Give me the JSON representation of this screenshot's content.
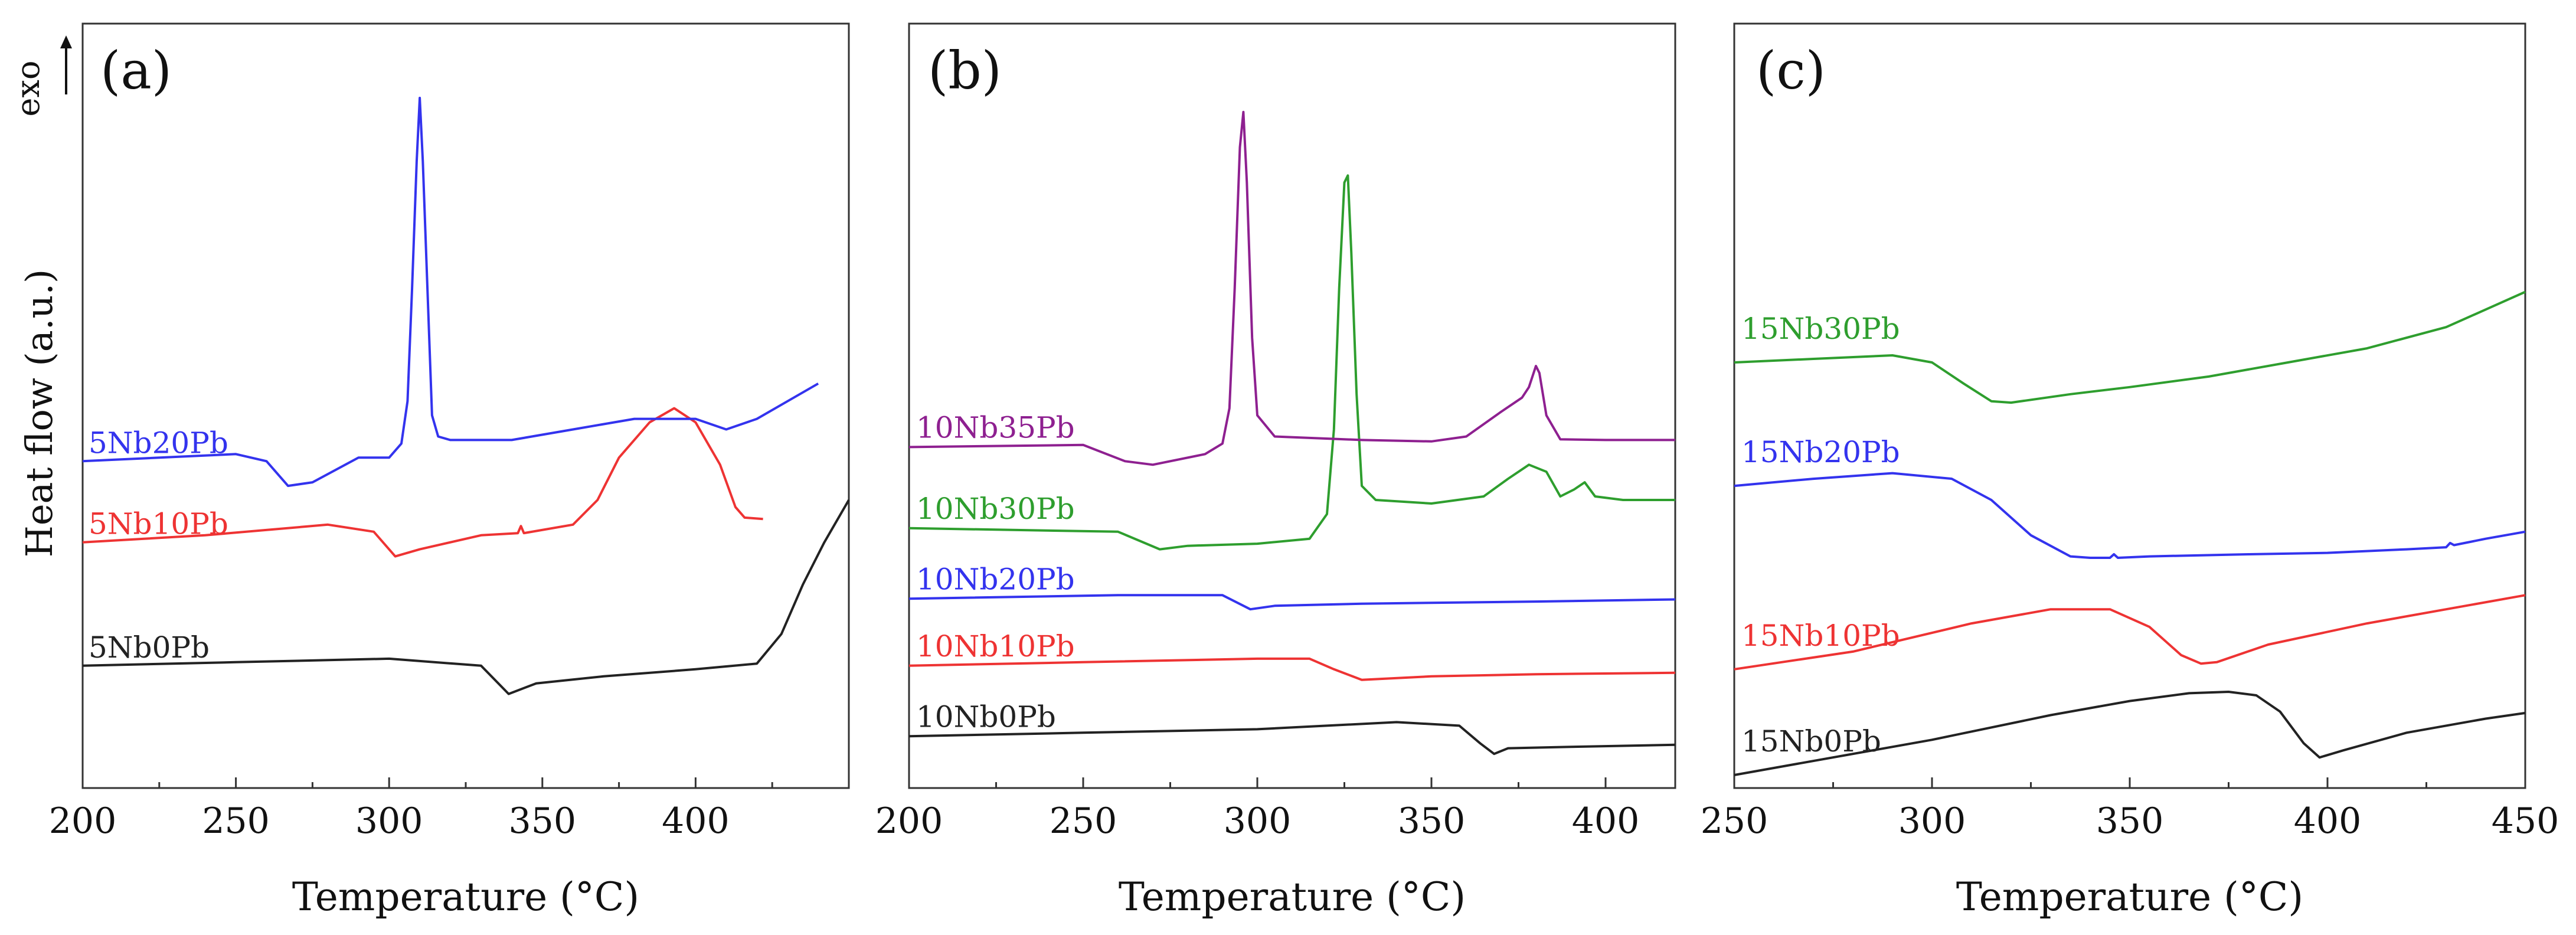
{
  "figure": {
    "y_axis_label": "Heat flow (a.u.)",
    "exo_label": "exo"
  },
  "chart_data": [
    {
      "type": "line",
      "panel_label": "(a)",
      "xlabel": "Temperature (°C)",
      "ylabel": "Heat flow (a.u.)",
      "xlim": [
        200,
        450
      ],
      "x_ticks": [
        "200",
        "250",
        "300",
        "350",
        "400"
      ],
      "ylim": [
        0,
        100
      ],
      "series": [
        {
          "name": "5Nb0Pb",
          "color": "#222222",
          "points": [
            [
              200,
              16.5
            ],
            [
              250,
              17.0
            ],
            [
              300,
              17.5
            ],
            [
              330,
              16.5
            ],
            [
              339,
              12.5
            ],
            [
              348,
              14.0
            ],
            [
              370,
              15.0
            ],
            [
              400,
              16.0
            ],
            [
              420,
              16.8
            ],
            [
              428,
              21
            ],
            [
              435,
              28
            ],
            [
              442,
              34
            ],
            [
              450,
              40
            ]
          ]
        },
        {
          "name": "5Nb10Pb",
          "color": "#ee3333",
          "points": [
            [
              200,
              34.0
            ],
            [
              240,
              35.0
            ],
            [
              280,
              36.5
            ],
            [
              295,
              35.5
            ],
            [
              302,
              32.0
            ],
            [
              310,
              33.0
            ],
            [
              330,
              35.0
            ],
            [
              342,
              35.3
            ],
            [
              343,
              36.3
            ],
            [
              344,
              35.3
            ],
            [
              360,
              36.5
            ],
            [
              368,
              40
            ],
            [
              375,
              46
            ],
            [
              385,
              51
            ],
            [
              393,
              53
            ],
            [
              400,
              51
            ],
            [
              408,
              45
            ],
            [
              413,
              39
            ],
            [
              416,
              37.5
            ],
            [
              422,
              37.3
            ]
          ]
        },
        {
          "name": "5Nb20Pb",
          "color": "#3333ee",
          "points": [
            [
              200,
              45.5
            ],
            [
              250,
              46.5
            ],
            [
              260,
              45.5
            ],
            [
              267,
              42.0
            ],
            [
              275,
              42.5
            ],
            [
              290,
              46.0
            ],
            [
              300,
              46.0
            ],
            [
              304,
              48
            ],
            [
              306,
              54
            ],
            [
              307.5,
              70
            ],
            [
              309,
              88
            ],
            [
              310,
              97
            ],
            [
              311,
              88
            ],
            [
              312.5,
              70
            ],
            [
              314,
              52
            ],
            [
              316,
              49
            ],
            [
              320,
              48.5
            ],
            [
              340,
              48.5
            ],
            [
              360,
              50
            ],
            [
              380,
              51.5
            ],
            [
              400,
              51.5
            ],
            [
              410,
              50.0
            ],
            [
              420,
              51.5
            ],
            [
              430,
              54.0
            ],
            [
              440,
              56.5
            ]
          ]
        }
      ]
    },
    {
      "type": "line",
      "panel_label": "(b)",
      "xlabel": "Temperature (°C)",
      "ylabel": "Heat flow (a.u.)",
      "xlim": [
        200,
        420
      ],
      "x_ticks": [
        "200",
        "250",
        "300",
        "350",
        "400"
      ],
      "ylim": [
        0,
        100
      ],
      "series": [
        {
          "name": "10Nb0Pb",
          "color": "#222222",
          "points": [
            [
              200,
              6.5
            ],
            [
              250,
              7.0
            ],
            [
              300,
              7.5
            ],
            [
              340,
              8.5
            ],
            [
              358,
              8.0
            ],
            [
              364,
              5.5
            ],
            [
              368,
              4.0
            ],
            [
              372,
              4.8
            ],
            [
              390,
              5.0
            ],
            [
              420,
              5.3
            ]
          ]
        },
        {
          "name": "10Nb10Pb",
          "color": "#ee3333",
          "points": [
            [
              200,
              16.5
            ],
            [
              250,
              17.0
            ],
            [
              300,
              17.5
            ],
            [
              315,
              17.5
            ],
            [
              322,
              16.0
            ],
            [
              330,
              14.5
            ],
            [
              350,
              15.0
            ],
            [
              380,
              15.3
            ],
            [
              420,
              15.5
            ]
          ]
        },
        {
          "name": "10Nb20Pb",
          "color": "#3333ee",
          "points": [
            [
              200,
              26.0
            ],
            [
              260,
              26.5
            ],
            [
              290,
              26.5
            ],
            [
              298,
              24.5
            ],
            [
              305,
              25.0
            ],
            [
              330,
              25.3
            ],
            [
              380,
              25.6
            ],
            [
              420,
              25.9
            ]
          ]
        },
        {
          "name": "10Nb30Pb",
          "color": "#2e9e2e",
          "points": [
            [
              200,
              36.0
            ],
            [
              260,
              35.5
            ],
            [
              272,
              33.0
            ],
            [
              280,
              33.5
            ],
            [
              300,
              33.8
            ],
            [
              315,
              34.5
            ],
            [
              320,
              38
            ],
            [
              322,
              50
            ],
            [
              323.5,
              70
            ],
            [
              325,
              85
            ],
            [
              326,
              86
            ],
            [
              327,
              75
            ],
            [
              328.5,
              55
            ],
            [
              330,
              42
            ],
            [
              334,
              40
            ],
            [
              350,
              39.5
            ],
            [
              365,
              40.5
            ],
            [
              372,
              43
            ],
            [
              378,
              45
            ],
            [
              383,
              44
            ],
            [
              387,
              40.5
            ],
            [
              391,
              41.5
            ],
            [
              394,
              42.5
            ],
            [
              397,
              40.5
            ],
            [
              405,
              40.0
            ],
            [
              420,
              40.0
            ]
          ]
        },
        {
          "name": "10Nb35Pb",
          "color": "#8e2090",
          "points": [
            [
              200,
              47.5
            ],
            [
              250,
              47.8
            ],
            [
              262,
              45.5
            ],
            [
              270,
              45.0
            ],
            [
              285,
              46.5
            ],
            [
              290,
              48.0
            ],
            [
              292,
              53
            ],
            [
              293.5,
              70
            ],
            [
              295,
              90
            ],
            [
              296,
              95
            ],
            [
              297,
              85
            ],
            [
              298.5,
              63
            ],
            [
              300,
              52
            ],
            [
              305,
              49.0
            ],
            [
              330,
              48.5
            ],
            [
              350,
              48.3
            ],
            [
              360,
              49.0
            ],
            [
              370,
              52.5
            ],
            [
              376,
              54.5
            ],
            [
              378,
              56
            ],
            [
              380,
              59
            ],
            [
              381,
              58
            ],
            [
              383,
              52
            ],
            [
              387,
              48.6
            ],
            [
              400,
              48.5
            ],
            [
              420,
              48.5
            ]
          ]
        }
      ]
    },
    {
      "type": "line",
      "panel_label": "(c)",
      "xlabel": "Temperature (°C)",
      "ylabel": "Heat flow (a.u.)",
      "xlim": [
        250,
        450
      ],
      "x_ticks": [
        "250",
        "300",
        "350",
        "400",
        "450"
      ],
      "ylim": [
        0,
        100
      ],
      "series": [
        {
          "name": "15Nb0Pb",
          "color": "#222222",
          "points": [
            [
              250,
              1.0
            ],
            [
              300,
              6.0
            ],
            [
              330,
              9.5
            ],
            [
              350,
              11.5
            ],
            [
              365,
              12.6
            ],
            [
              375,
              12.8
            ],
            [
              382,
              12.3
            ],
            [
              388,
              10
            ],
            [
              394,
              5.5
            ],
            [
              398,
              3.5
            ],
            [
              404,
              4.5
            ],
            [
              420,
              7.0
            ],
            [
              440,
              9.0
            ],
            [
              450,
              9.8
            ]
          ]
        },
        {
          "name": "15Nb10Pb",
          "color": "#ee3333",
          "points": [
            [
              250,
              16.0
            ],
            [
              280,
              18.5
            ],
            [
              310,
              22.5
            ],
            [
              330,
              24.5
            ],
            [
              345,
              24.5
            ],
            [
              355,
              22
            ],
            [
              363,
              18
            ],
            [
              368,
              16.8
            ],
            [
              372,
              17.0
            ],
            [
              385,
              19.5
            ],
            [
              410,
              22.5
            ],
            [
              430,
              24.5
            ],
            [
              450,
              26.5
            ]
          ]
        },
        {
          "name": "15Nb20Pb",
          "color": "#3333ee",
          "points": [
            [
              250,
              42.0
            ],
            [
              270,
              43.0
            ],
            [
              290,
              43.8
            ],
            [
              305,
              43.0
            ],
            [
              315,
              40
            ],
            [
              325,
              35
            ],
            [
              335,
              32.0
            ],
            [
              340,
              31.8
            ],
            [
              345,
              31.8
            ],
            [
              346,
              32.3
            ],
            [
              347,
              31.8
            ],
            [
              355,
              32.0
            ],
            [
              380,
              32.3
            ],
            [
              400,
              32.5
            ],
            [
              420,
              33.0
            ],
            [
              430,
              33.3
            ],
            [
              431,
              33.9
            ],
            [
              432,
              33.6
            ],
            [
              440,
              34.5
            ],
            [
              450,
              35.5
            ]
          ]
        },
        {
          "name": "15Nb30Pb",
          "color": "#2e9e2e",
          "points": [
            [
              250,
              59.5
            ],
            [
              270,
              60.0
            ],
            [
              290,
              60.5
            ],
            [
              300,
              59.5
            ],
            [
              308,
              56.5
            ],
            [
              315,
              54.0
            ],
            [
              320,
              53.8
            ],
            [
              335,
              55.0
            ],
            [
              350,
              56.0
            ],
            [
              370,
              57.5
            ],
            [
              390,
              59.5
            ],
            [
              410,
              61.5
            ],
            [
              430,
              64.5
            ],
            [
              450,
              69.5
            ]
          ]
        }
      ]
    }
  ]
}
